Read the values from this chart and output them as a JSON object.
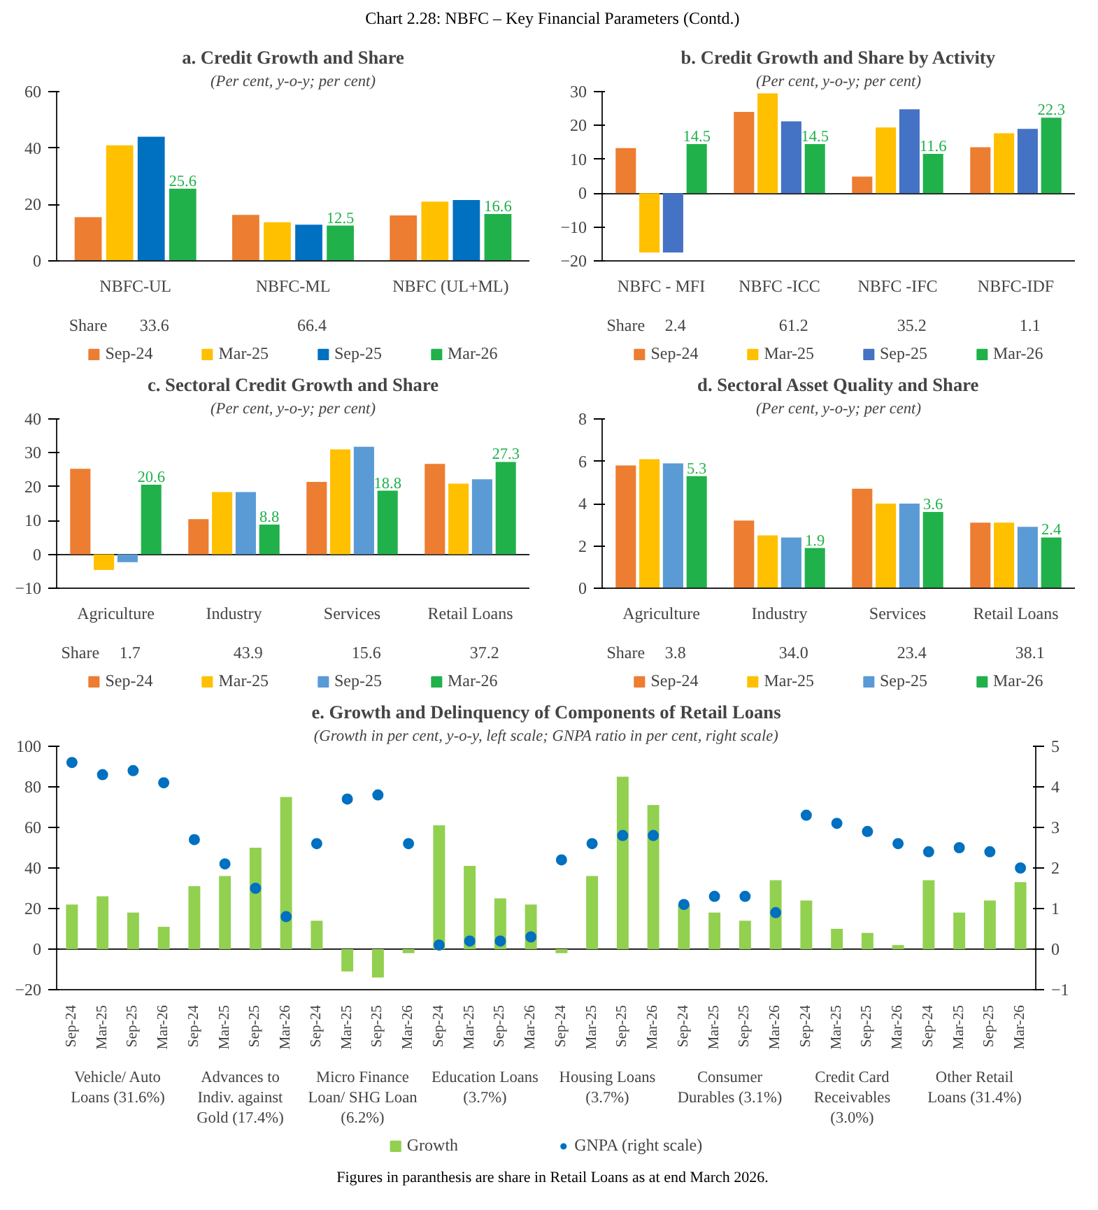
{
  "chart_data": [
    {
      "type": "other",
      "title": "Chart 2.28: NBFC – Key Financial Parameters (Contd.)"
    },
    {
      "type": "bar",
      "title": "a. Credit Growth and Share",
      "subtitle": "(Per cent, y-o-y; per cent)",
      "categories": [
        "NBFC-UL",
        "NBFC-ML",
        "NBFC (UL+ML)"
      ],
      "ylim": [
        0,
        60
      ],
      "yticks": [
        0,
        20,
        40,
        60
      ],
      "legend": "bottom",
      "series": [
        {
          "name": "Sep-24",
          "color": "#ed7d31",
          "values": [
            15.5,
            16.3,
            16.1
          ]
        },
        {
          "name": "Mar-25",
          "color": "#ffc000",
          "values": [
            41,
            13.7,
            21
          ]
        },
        {
          "name": "Sep-25",
          "color": "#0070c0",
          "values": [
            44,
            12.8,
            21.6
          ]
        },
        {
          "name": "Mar-26",
          "color": "#21b14b",
          "values": [
            25.6,
            12.5,
            16.6
          ],
          "value_labels": [
            "25.6",
            "12.5",
            "16.6"
          ]
        }
      ],
      "annotations": [
        "Share",
        "33.6",
        "66.4"
      ]
    },
    {
      "type": "bar",
      "title": "b. Credit Growth and Share by Activity",
      "subtitle": "(Per cent, y-o-y; per cent)",
      "categories": [
        "NBFC - MFI",
        "NBFC -ICC",
        "NBFC -IFC",
        "NBFC-IDF"
      ],
      "ylim": [
        -20,
        30
      ],
      "yticks": [
        -20,
        -10,
        0,
        10,
        20,
        30
      ],
      "legend": "bottom",
      "series": [
        {
          "name": "Sep-24",
          "color": "#ed7d31",
          "values": [
            13.3,
            24,
            4.9,
            13.6
          ]
        },
        {
          "name": "Mar-25",
          "color": "#ffc000",
          "values": [
            -17.5,
            29.5,
            19.4,
            17.7
          ]
        },
        {
          "name": "Sep-25",
          "color": "#4472c4",
          "values": [
            -17.5,
            21.2,
            24.8,
            19
          ]
        },
        {
          "name": "Mar-26",
          "color": "#21b14b",
          "values": [
            14.5,
            14.5,
            11.6,
            22.3
          ],
          "value_labels": [
            "14.5",
            "14.5",
            "11.6",
            "22.3"
          ]
        }
      ],
      "annotations": [
        "Share",
        "2.4",
        "61.2",
        "35.2",
        "1.1"
      ]
    },
    {
      "type": "bar",
      "title": "c. Sectoral Credit Growth and Share",
      "subtitle": "(Per cent, y-o-y; per cent)",
      "categories": [
        "Agriculture",
        "Industry",
        "Services",
        "Retail Loans"
      ],
      "ylim": [
        -10,
        40
      ],
      "yticks": [
        -10,
        0,
        10,
        20,
        30,
        40
      ],
      "legend": "bottom",
      "series": [
        {
          "name": "Sep-24",
          "color": "#ed7d31",
          "values": [
            25.3,
            10.4,
            21.4,
            26.7
          ]
        },
        {
          "name": "Mar-25",
          "color": "#ffc000",
          "values": [
            -4.6,
            18.4,
            31,
            20.9
          ]
        },
        {
          "name": "Sep-25",
          "color": "#5b9bd5",
          "values": [
            -2.3,
            18.4,
            31.8,
            22.2
          ]
        },
        {
          "name": "Mar-26",
          "color": "#21b14b",
          "values": [
            20.6,
            8.8,
            18.8,
            27.3
          ],
          "value_labels": [
            "20.6",
            "8.8",
            "18.8",
            "27.3"
          ]
        }
      ],
      "annotations": [
        "Share",
        "1.7",
        "43.9",
        "15.6",
        "37.2"
      ]
    },
    {
      "type": "bar",
      "title": "d. Sectoral Asset Quality and Share",
      "subtitle": "(Per cent, y-o-y; per cent)",
      "categories": [
        "Agriculture",
        "Industry",
        "Services",
        "Retail Loans"
      ],
      "ylim": [
        0,
        8
      ],
      "yticks": [
        0,
        2,
        4,
        6,
        8
      ],
      "legend": "bottom",
      "series": [
        {
          "name": "Sep-24",
          "color": "#ed7d31",
          "values": [
            5.8,
            3.2,
            4.7,
            3.1
          ]
        },
        {
          "name": "Mar-25",
          "color": "#ffc000",
          "values": [
            6.1,
            2.5,
            4.0,
            3.1
          ]
        },
        {
          "name": "Sep-25",
          "color": "#5b9bd5",
          "values": [
            5.9,
            2.4,
            4.0,
            2.9
          ]
        },
        {
          "name": "Mar-26",
          "color": "#21b14b",
          "values": [
            5.3,
            1.9,
            3.6,
            2.4
          ],
          "value_labels": [
            "5.3",
            "1.9",
            "3.6",
            "2.4"
          ]
        }
      ],
      "annotations": [
        "Share",
        "3.8",
        "34.0",
        "23.4",
        "38.1"
      ]
    },
    {
      "type": "bar",
      "title": "e. Growth and Delinquency of Components of Retail Loans",
      "subtitle": "(Growth in per cent, y-o-y, left scale; GNPA ratio in per cent, right scale)",
      "categories": [
        "Sep-24",
        "Mar-25",
        "Sep-25",
        "Mar-26",
        "Sep-24",
        "Mar-25",
        "Sep-25",
        "Mar-26",
        "Sep-24",
        "Mar-25",
        "Sep-25",
        "Mar-26",
        "Sep-24",
        "Mar-25",
        "Sep-25",
        "Mar-26",
        "Sep-24",
        "Mar-25",
        "Sep-25",
        "Mar-26",
        "Sep-24",
        "Mar-25",
        "Sep-25",
        "Mar-26",
        "Sep-24",
        "Mar-25",
        "Sep-25",
        "Mar-26",
        "Sep-24",
        "Mar-25",
        "Sep-25",
        "Mar-26"
      ],
      "ylim": [
        -20,
        100
      ],
      "yticks": [
        -20,
        0,
        20,
        40,
        60,
        80,
        100
      ],
      "y2lim": [
        -1,
        5
      ],
      "y2ticks": [
        -1,
        0,
        1,
        2,
        3,
        4,
        5
      ],
      "legend": "bottom",
      "marker": "circle",
      "series": [
        {
          "name": "Growth",
          "color": "#92d050",
          "values": [
            22,
            26,
            18,
            11,
            31,
            36,
            50,
            75,
            14,
            -11,
            -14,
            -2,
            61,
            41,
            25,
            22,
            -2,
            36,
            85,
            71,
            22,
            18,
            14,
            34,
            24,
            10,
            8,
            2,
            34,
            18,
            24,
            33
          ]
        },
        {
          "name": "GNPA (right scale)",
          "type": "scatter",
          "axis": "y2",
          "color": "#0070c0",
          "values": [
            4.6,
            4.3,
            4.4,
            4.1,
            2.7,
            2.1,
            1.5,
            0.8,
            2.6,
            3.7,
            3.8,
            2.6,
            0.1,
            0.2,
            0.2,
            0.3,
            2.2,
            2.6,
            2.8,
            2.8,
            1.1,
            1.3,
            1.3,
            0.9,
            3.3,
            3.1,
            2.9,
            2.6,
            2.4,
            2.5,
            2.4,
            2.0
          ]
        }
      ],
      "annotations": [
        "Vehicle/ Auto Loans (31.6%)",
        "Advances to Indiv. against Gold (17.4%)",
        "Micro Finance Loan/ SHG Loan (6.2%)",
        "Education Loans (3.7%)",
        "Housing Loans (3.7%)",
        "Consumer Durables (3.1%)",
        "Credit Card Receivables (3.0%)",
        "Other Retail Loans (31.4%)",
        "Figures in paranthesis are share in Retail Loans as at end March 2026."
      ]
    }
  ]
}
